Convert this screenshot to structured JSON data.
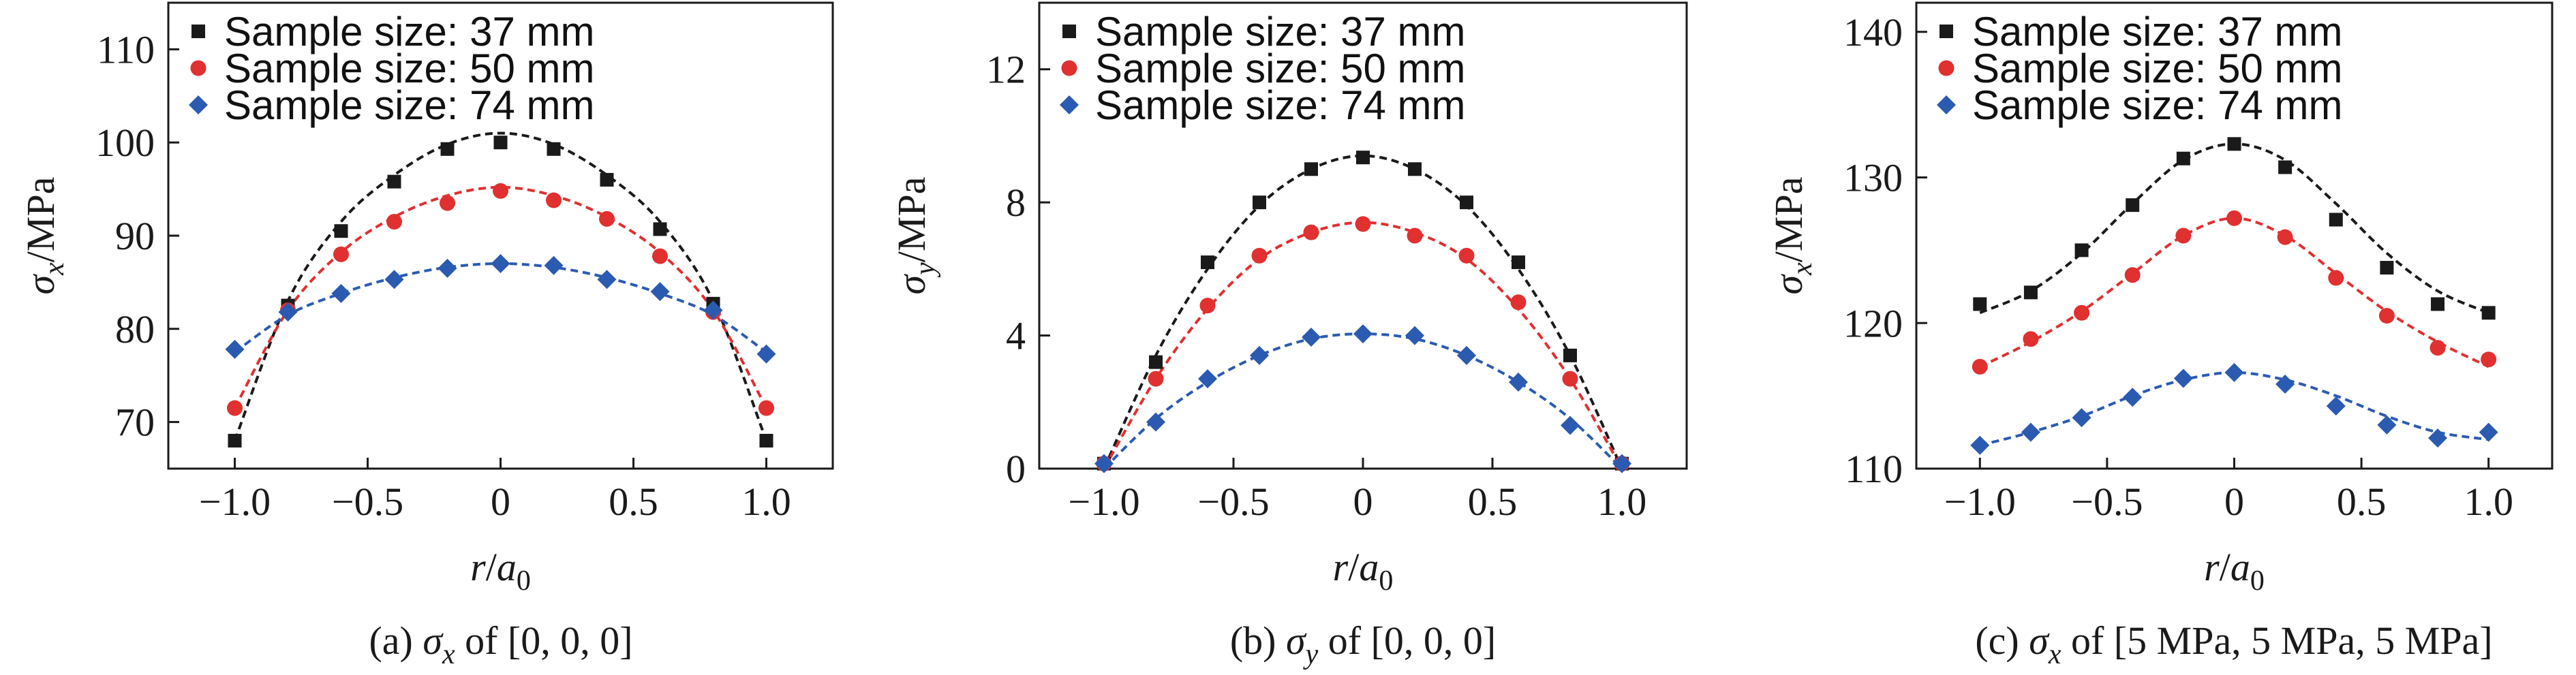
{
  "figure": {
    "series_colors": [
      "#1a1a1a",
      "#e03030",
      "#2b5bb0"
    ],
    "series_markers": [
      "square",
      "circle",
      "diamond"
    ]
  },
  "chart_data": [
    {
      "type": "scatter",
      "caption_prefix": "(a) ",
      "caption_sym": "σ",
      "caption_sub": "x",
      "caption_suffix": " of [0, 0, 0]",
      "ylabel_sym": "σ",
      "ylabel_sub": "x",
      "ylabel_unit": "/MPa",
      "xlabel_sym": "r",
      "xlabel_mid": "/",
      "xlabel_sym2": "a",
      "xlabel_sub": "0",
      "xlim": [
        -1.25,
        1.25
      ],
      "ylim": [
        65,
        115
      ],
      "xticks": [
        -1.0,
        -0.5,
        0,
        0.5,
        1.0
      ],
      "xtick_labels": [
        "−1.0",
        "−0.5",
        "0",
        "0.5",
        "1.0"
      ],
      "yticks": [
        70,
        80,
        90,
        100,
        110
      ],
      "ytick_labels": [
        "70",
        "80",
        "90",
        "100",
        "110"
      ],
      "legend_position": "top-left",
      "grid": false,
      "x": [
        -1.0,
        -0.8,
        -0.6,
        -0.4,
        -0.2,
        0,
        0.2,
        0.4,
        0.6,
        0.8,
        1.0
      ],
      "series": [
        {
          "name": "Sample size: 37 mm",
          "values": [
            68.0,
            82.5,
            90.5,
            95.8,
            99.3,
            100.0,
            99.3,
            96.0,
            90.7,
            82.7,
            68.0
          ],
          "fit": {
            "x": [
              -1.0,
              -0.8,
              -0.6,
              -0.4,
              -0.2,
              0,
              0.2,
              0.4,
              0.6,
              0.8,
              1.0
            ],
            "y": [
              68.0,
              83.0,
              91.5,
              96.5,
              99.8,
              101.0,
              99.8,
              96.5,
              91.5,
              83.0,
              68.0
            ]
          }
        },
        {
          "name": "Sample size: 50 mm",
          "values": [
            71.5,
            82.0,
            88.0,
            91.5,
            93.5,
            94.8,
            93.8,
            91.8,
            87.8,
            81.8,
            71.5
          ],
          "fit": {
            "x": [
              -1.0,
              -0.8,
              -0.6,
              -0.4,
              -0.2,
              0,
              0.2,
              0.4,
              0.6,
              0.8,
              1.0
            ],
            "y": [
              71.5,
              82.0,
              88.2,
              92.0,
              94.3,
              95.2,
              94.3,
              92.0,
              88.2,
              82.0,
              71.5
            ]
          }
        },
        {
          "name": "Sample size: 74 mm",
          "values": [
            77.8,
            81.8,
            83.8,
            85.3,
            86.5,
            87.0,
            86.8,
            85.3,
            84.0,
            82.0,
            77.3
          ],
          "fit": {
            "x": [
              -1.0,
              -0.8,
              -0.6,
              -0.4,
              -0.2,
              0,
              0.2,
              0.4,
              0.6,
              0.8,
              1.0
            ],
            "y": [
              77.5,
              81.5,
              83.8,
              85.5,
              86.6,
              87.0,
              86.6,
              85.5,
              83.8,
              81.5,
              77.5
            ]
          }
        }
      ]
    },
    {
      "type": "scatter",
      "caption_prefix": "(b) ",
      "caption_sym": "σ",
      "caption_sub": "y",
      "caption_suffix": " of [0, 0, 0]",
      "ylabel_sym": "σ",
      "ylabel_sub": "y",
      "ylabel_unit": "/MPa",
      "xlabel_sym": "r",
      "xlabel_mid": "/",
      "xlabel_sym2": "a",
      "xlabel_sub": "0",
      "xlim": [
        -1.25,
        1.25
      ],
      "ylim": [
        0,
        14
      ],
      "xticks": [
        -1.0,
        -0.5,
        0,
        0.5,
        1.0
      ],
      "xtick_labels": [
        "−1.0",
        "−0.5",
        "0",
        "0.5",
        "1.0"
      ],
      "yticks": [
        0,
        4,
        8,
        12
      ],
      "ytick_labels": [
        "0",
        "4",
        "8",
        "12"
      ],
      "legend_position": "top-left",
      "grid": false,
      "x": [
        -1.0,
        -0.8,
        -0.6,
        -0.4,
        -0.2,
        0,
        0.2,
        0.4,
        0.6,
        0.8,
        1.0
      ],
      "series": [
        {
          "name": "Sample size: 37 mm",
          "values": [
            0.15,
            3.2,
            6.2,
            8.0,
            9.0,
            9.35,
            9.0,
            8.0,
            6.2,
            3.4,
            0.15
          ],
          "fit": {
            "x": [
              -1.0,
              -0.8,
              -0.6,
              -0.4,
              -0.2,
              0,
              0.2,
              0.4,
              0.6,
              0.8,
              1.0
            ],
            "y": [
              0.0,
              3.4,
              6.0,
              7.9,
              9.0,
              9.4,
              9.0,
              7.9,
              6.0,
              3.4,
              0.0
            ]
          }
        },
        {
          "name": "Sample size: 50 mm",
          "values": [
            0.15,
            2.7,
            4.9,
            6.4,
            7.1,
            7.35,
            7.0,
            6.4,
            5.0,
            2.7,
            0.15
          ],
          "fit": {
            "x": [
              -1.0,
              -0.8,
              -0.6,
              -0.4,
              -0.2,
              0,
              0.2,
              0.4,
              0.6,
              0.8,
              1.0
            ],
            "y": [
              0.0,
              2.7,
              4.8,
              6.3,
              7.1,
              7.4,
              7.1,
              6.3,
              4.8,
              2.7,
              0.0
            ]
          }
        },
        {
          "name": "Sample size: 74 mm",
          "values": [
            0.15,
            1.4,
            2.7,
            3.4,
            3.95,
            4.05,
            4.0,
            3.4,
            2.6,
            1.3,
            0.15
          ],
          "fit": {
            "x": [
              -1.0,
              -0.8,
              -0.6,
              -0.4,
              -0.2,
              0,
              0.2,
              0.4,
              0.6,
              0.8,
              1.0
            ],
            "y": [
              0.0,
              1.5,
              2.6,
              3.4,
              3.9,
              4.05,
              3.9,
              3.4,
              2.6,
              1.5,
              0.0
            ]
          }
        }
      ]
    },
    {
      "type": "scatter",
      "caption_prefix": "(c) ",
      "caption_sym": "σ",
      "caption_sub": "x",
      "caption_suffix": " of [5 MPa, 5 MPa, 5 MPa]",
      "ylabel_sym": "σ",
      "ylabel_sub": "x",
      "ylabel_unit": "/MPa",
      "xlabel_sym": "r",
      "xlabel_mid": "/",
      "xlabel_sym2": "a",
      "xlabel_sub": "0",
      "xlim": [
        -1.25,
        1.25
      ],
      "ylim": [
        110,
        142
      ],
      "xticks": [
        -1.0,
        -0.5,
        0,
        0.5,
        1.0
      ],
      "xtick_labels": [
        "−1.0",
        "−0.5",
        "0",
        "0.5",
        "1.0"
      ],
      "yticks": [
        110,
        120,
        130,
        140
      ],
      "ytick_labels": [
        "110",
        "120",
        "130",
        "140"
      ],
      "legend_position": "top-left",
      "grid": false,
      "x": [
        -1.0,
        -0.8,
        -0.6,
        -0.4,
        -0.2,
        0,
        0.2,
        0.4,
        0.6,
        0.8,
        1.0
      ],
      "series": [
        {
          "name": "Sample size: 37 mm",
          "values": [
            121.3,
            122.1,
            125.0,
            128.1,
            131.3,
            132.3,
            130.7,
            127.1,
            123.8,
            121.3,
            120.7
          ],
          "fit": {
            "x": [
              -1.0,
              -0.8,
              -0.6,
              -0.4,
              -0.2,
              0,
              0.2,
              0.4,
              0.6,
              0.8,
              1.0
            ],
            "y": [
              120.7,
              122.2,
              124.8,
              128.2,
              131.2,
              132.3,
              131.2,
              128.2,
              124.8,
              122.2,
              120.7
            ]
          }
        },
        {
          "name": "Sample size: 50 mm",
          "values": [
            117.0,
            118.9,
            120.7,
            123.3,
            126.0,
            127.2,
            125.9,
            123.1,
            120.5,
            118.3,
            117.5
          ],
          "fit": {
            "x": [
              -1.0,
              -0.8,
              -0.6,
              -0.4,
              -0.2,
              0,
              0.2,
              0.4,
              0.6,
              0.8,
              1.0
            ],
            "y": [
              117.0,
              118.7,
              120.8,
              123.4,
              126.0,
              127.2,
              126.0,
              123.4,
              120.8,
              118.7,
              117.0
            ]
          }
        },
        {
          "name": "Sample size: 74 mm",
          "values": [
            111.6,
            112.5,
            113.5,
            114.9,
            116.2,
            116.6,
            115.8,
            114.3,
            113.0,
            112.1,
            112.5
          ],
          "fit": {
            "x": [
              -1.0,
              -0.8,
              -0.6,
              -0.4,
              -0.2,
              0,
              0.2,
              0.4,
              0.6,
              0.8,
              1.0
            ],
            "y": [
              111.6,
              112.5,
              113.6,
              115.0,
              116.1,
              116.6,
              116.1,
              115.0,
              113.6,
              112.5,
              112.0
            ]
          }
        }
      ]
    }
  ]
}
